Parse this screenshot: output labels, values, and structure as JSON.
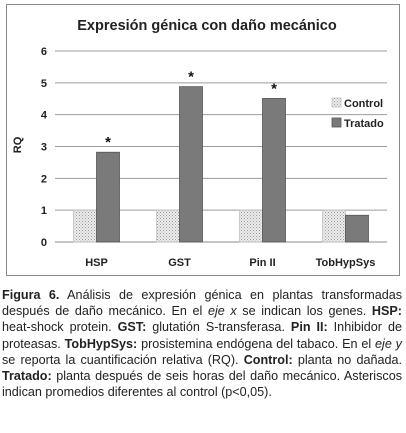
{
  "chart_data": {
    "type": "bar",
    "title": "Expresión génica con daño mecánico",
    "xlabel": "",
    "ylabel": "RQ",
    "ylim": [
      0,
      6
    ],
    "yticks": [
      "0",
      "1",
      "2",
      "3",
      "4",
      "5",
      "6"
    ],
    "grid": true,
    "legend_position": "right",
    "categories": [
      "HSP",
      "GST",
      "Pin II",
      "TobHypSys"
    ],
    "series": [
      {
        "name": "Control",
        "values": [
          1,
          1,
          1,
          1
        ],
        "color": "#d4d4d4",
        "pattern": "dotted"
      },
      {
        "name": "Tratado",
        "values": [
          2.82,
          4.88,
          4.51,
          0.84
        ],
        "color": "#7a7a7a",
        "pattern": "solid"
      }
    ],
    "annotations": [
      "*",
      "*",
      "*",
      ""
    ]
  },
  "caption": {
    "figure_label": "Figura 6.",
    "seg1": " Análisis de expresión génica en plantas transformadas después de daño mecánico. En el ",
    "eje_x": "eje x",
    "seg2": " se indican los genes. ",
    "hsp_label": "HSP:",
    "hsp_text": " heat-shock protein. ",
    "gst_label": "GST:",
    "gst_text": " glutatión S-transferasa. ",
    "pin_label": "Pin II:",
    "pin_text": " Inhibidor de proteasas. ",
    "tob_label": "TobHypSys:",
    "tob_text": " prosistemina endógena del tabaco. En el ",
    "eje_y": "eje y",
    "seg3": " se reporta la cuantificación relativa (RQ). ",
    "control_label": "Control:",
    "control_text": " planta no dañada. ",
    "tratado_label": "Tratado:",
    "tratado_text": " planta después de seis horas del daño mecánico. Asteriscos indican promedios diferentes al control (p<0,05)."
  }
}
